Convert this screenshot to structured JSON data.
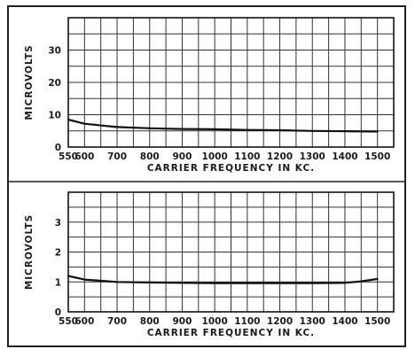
{
  "chart_data": [
    {
      "type": "line",
      "title": "",
      "xlabel": "CARRIER FREQUENCY IN KC.",
      "ylabel": "MICROVOLTS",
      "xlim": [
        550,
        1550
      ],
      "ylim": [
        0,
        40
      ],
      "x_ticks": [
        550,
        600,
        700,
        800,
        900,
        1000,
        1100,
        1200,
        1300,
        1400,
        1500
      ],
      "x_tick_labels": [
        "550",
        "600",
        "700",
        "800",
        "900",
        "1000",
        "1100",
        "1200",
        "1300",
        "1400",
        "1500"
      ],
      "y_ticks": [
        0,
        10,
        20,
        30
      ],
      "y_tick_labels": [
        "0",
        "10",
        "20",
        "30"
      ],
      "grid": true,
      "series": [
        {
          "x": [
            550,
            600,
            700,
            800,
            900,
            1000,
            1100,
            1200,
            1300,
            1400,
            1500
          ],
          "y": [
            8.5,
            7.2,
            6.2,
            5.8,
            5.6,
            5.5,
            5.3,
            5.2,
            5.0,
            4.9,
            4.8
          ]
        }
      ]
    },
    {
      "type": "line",
      "title": "",
      "xlabel": "CARRIER FREQUENCY IN KC.",
      "ylabel": "MICROVOLTS",
      "xlim": [
        550,
        1550
      ],
      "ylim": [
        0,
        4
      ],
      "x_ticks": [
        550,
        600,
        700,
        800,
        900,
        1000,
        1100,
        1200,
        1300,
        1400,
        1500
      ],
      "x_tick_labels": [
        "550",
        "600",
        "700",
        "800",
        "900",
        "1000",
        "1100",
        "1200",
        "1300",
        "1400",
        "1500"
      ],
      "y_ticks": [
        0,
        1,
        2,
        3
      ],
      "y_tick_labels": [
        "0",
        "1",
        "2",
        "3"
      ],
      "grid": true,
      "series": [
        {
          "x": [
            550,
            600,
            700,
            800,
            900,
            1000,
            1100,
            1200,
            1300,
            1400,
            1450,
            1500
          ],
          "y": [
            1.2,
            1.08,
            1.0,
            0.98,
            0.97,
            0.96,
            0.96,
            0.96,
            0.96,
            0.97,
            1.02,
            1.1
          ]
        }
      ]
    }
  ]
}
